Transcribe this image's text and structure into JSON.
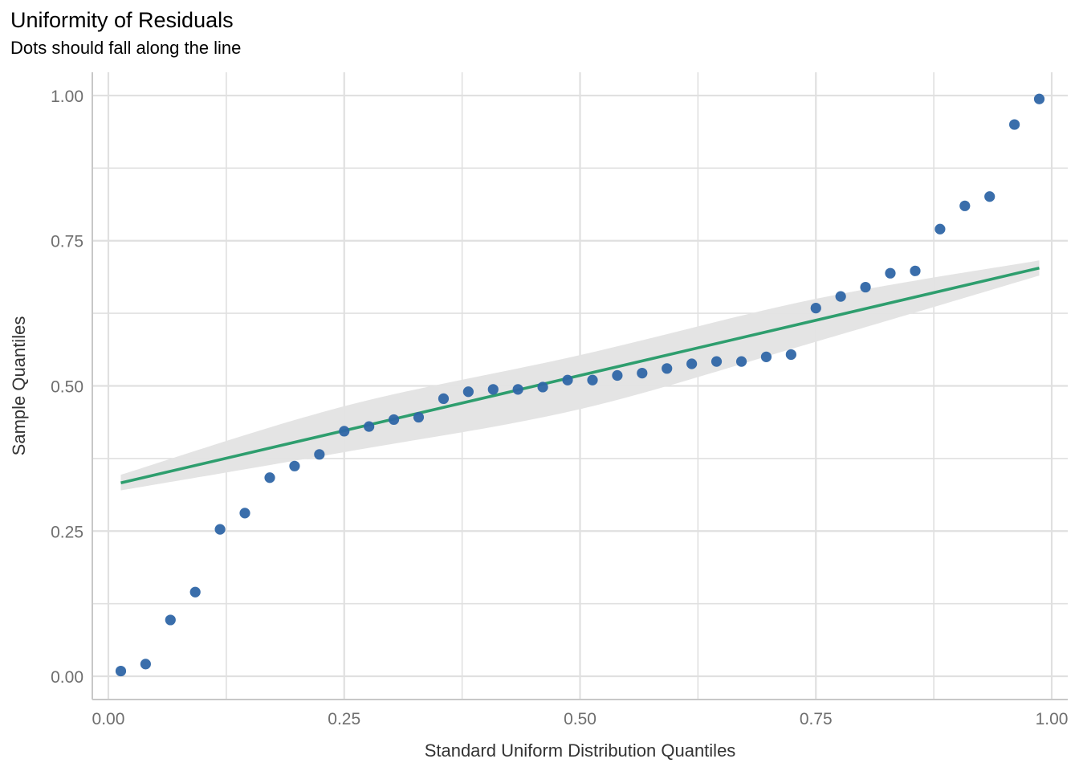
{
  "chart_data": {
    "type": "scatter",
    "title": "Uniformity of Residuals",
    "subtitle": "Dots should fall along the line",
    "xlabel": "Standard Uniform Distribution Quantiles",
    "ylabel": "Sample Quantiles",
    "xlim": [
      -0.017,
      1.017
    ],
    "ylim": [
      -0.04,
      1.04
    ],
    "x_ticks": [
      0.0,
      0.25,
      0.5,
      0.75,
      1.0
    ],
    "x_tick_labels": [
      "0.00",
      "0.25",
      "0.50",
      "0.75",
      "1.00"
    ],
    "y_ticks": [
      0.0,
      0.25,
      0.5,
      0.75,
      1.0
    ],
    "y_tick_labels": [
      "0.00",
      "0.25",
      "0.50",
      "0.75",
      "1.00"
    ],
    "grid": true,
    "colors": {
      "points": "#2f66a6",
      "line": "#2e9e6e",
      "band": "#e3e3e3",
      "grid": "#e0e0e0",
      "axis": "#c8c8c8"
    },
    "series": [
      {
        "type": "points",
        "x": [
          0.0132,
          0.0395,
          0.0658,
          0.0921,
          0.1184,
          0.1447,
          0.1711,
          0.1974,
          0.2237,
          0.25,
          0.2763,
          0.3026,
          0.3289,
          0.3553,
          0.3816,
          0.4079,
          0.4342,
          0.4605,
          0.4868,
          0.5132,
          0.5395,
          0.5658,
          0.5921,
          0.6184,
          0.6447,
          0.6711,
          0.6974,
          0.7237,
          0.75,
          0.7763,
          0.8026,
          0.8289,
          0.8553,
          0.8816,
          0.9079,
          0.9342,
          0.9605,
          0.9868
        ],
        "y": [
          0.009,
          0.021,
          0.097,
          0.145,
          0.253,
          0.281,
          0.342,
          0.362,
          0.382,
          0.422,
          0.43,
          0.442,
          0.446,
          0.478,
          0.49,
          0.494,
          0.494,
          0.498,
          0.51,
          0.51,
          0.518,
          0.522,
          0.53,
          0.538,
          0.542,
          0.542,
          0.55,
          0.554,
          0.634,
          0.654,
          0.67,
          0.694,
          0.698,
          0.77,
          0.81,
          0.826,
          0.95,
          0.994
        ]
      },
      {
        "type": "line",
        "x": [
          0.0132,
          0.9868
        ],
        "y": [
          0.333,
          0.703
        ]
      },
      {
        "type": "band",
        "x": [
          0.0132,
          0.25,
          0.5,
          0.75,
          0.9868
        ],
        "y_low": [
          0.32,
          0.386,
          0.46,
          0.576,
          0.69
        ],
        "y_high": [
          0.347,
          0.465,
          0.553,
          0.65,
          0.716
        ]
      }
    ]
  }
}
